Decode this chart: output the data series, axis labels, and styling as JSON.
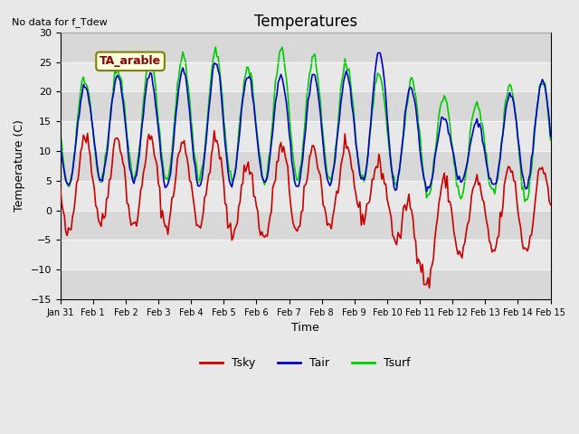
{
  "title": "Temperatures",
  "xlabel": "Time",
  "ylabel": "Temperature (C)",
  "note": "No data for f_Tdew",
  "annotation": "TA_arable",
  "ylim": [
    -15,
    30
  ],
  "yticks": [
    -15,
    -10,
    -5,
    0,
    5,
    10,
    15,
    20,
    25,
    30
  ],
  "date_labels": [
    "Jan 31",
    "Feb 1",
    "Feb 2",
    "Feb 3",
    "Feb 4",
    "Feb 5",
    "Feb 6",
    "Feb 7",
    "Feb 8",
    "Feb 9",
    "Feb 10",
    "Feb 11",
    "Feb 12",
    "Feb 13",
    "Feb 14",
    "Feb 15"
  ],
  "tsky_color": "#cc0000",
  "tair_color": "#0000cc",
  "tsurf_color": "#00cc00",
  "bg_color": "#e8e8e8",
  "plot_bg": "#f0f0f0",
  "band1_color": "#d8d8d8",
  "band2_color": "#e8e8e8"
}
